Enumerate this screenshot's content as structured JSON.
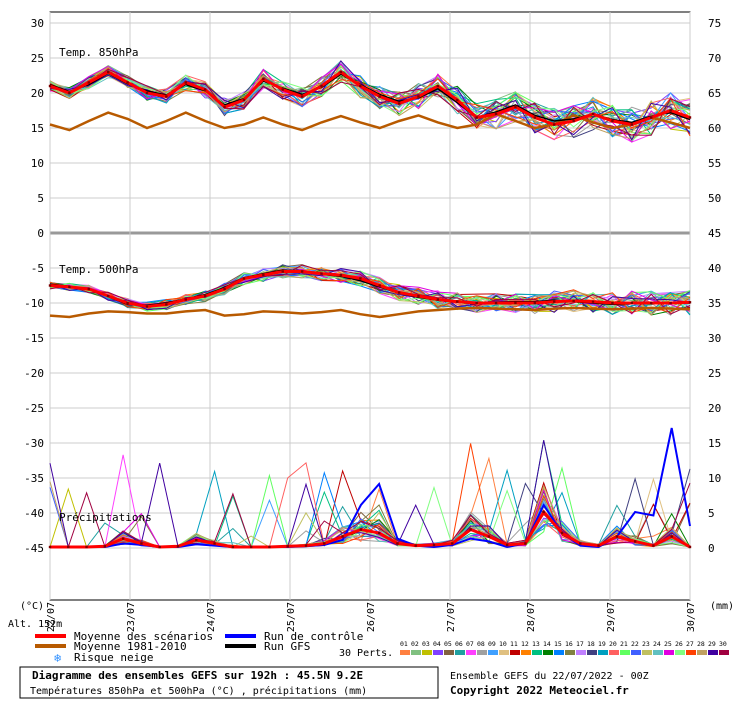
{
  "chart_data": {
    "type": "line",
    "left_axis_unit": "(°C)",
    "right_axis_unit": "(mm)",
    "altitude_label": "Alt. 152m",
    "left_ticks": [
      30,
      25,
      20,
      15,
      10,
      5,
      0,
      -5,
      -10,
      -15,
      -20,
      -25,
      -30,
      -35,
      -40,
      -45
    ],
    "right_ticks": [
      75,
      70,
      65,
      60,
      55,
      50,
      45,
      40,
      35,
      30,
      25,
      20,
      15,
      10,
      5,
      0
    ],
    "x_ticks": [
      "22/07",
      "23/07",
      "24/07",
      "25/07",
      "26/07",
      "27/07",
      "28/07",
      "29/07",
      "30/07"
    ],
    "section_labels": {
      "t850": "Temp. 850hPa",
      "t500": "Temp. 500hPa",
      "precip": "Précipitations"
    },
    "series": [
      {
        "name": "Moyenne des scénarios",
        "color": "#ff0000",
        "t850": [
          21,
          20,
          21.5,
          23,
          21.5,
          20,
          19.5,
          21.5,
          20.5,
          18,
          19,
          22,
          20.5,
          19.5,
          21,
          23,
          21,
          19.5,
          18.5,
          19.5,
          21,
          19,
          16.5,
          17,
          18,
          16.5,
          15.5,
          16,
          17,
          16,
          15.5,
          16.5,
          17.5,
          16.5
        ],
        "t500": [
          -7.5,
          -7.7,
          -8,
          -9,
          -10,
          -10.5,
          -10.2,
          -9.5,
          -9,
          -8,
          -6.5,
          -6,
          -5.5,
          -5.5,
          -5.8,
          -6,
          -6.5,
          -7.5,
          -8.5,
          -9,
          -9.5,
          -9.8,
          -10,
          -10,
          -10,
          -10,
          -9.8,
          -9.7,
          -9.8,
          -10,
          -10,
          -10,
          -10,
          -9.9
        ],
        "precip": [
          0,
          0,
          0,
          0.1,
          1.2,
          0.5,
          0,
          0.1,
          1,
          0.5,
          0,
          0,
          0,
          0.1,
          0.2,
          0.5,
          1.5,
          2.5,
          2,
          0.5,
          0.2,
          0.3,
          0.5,
          2.5,
          1.5,
          0.3,
          0.5,
          5,
          2,
          0.5,
          0.2,
          1.5,
          0.8,
          0.2,
          1.5,
          0
        ]
      },
      {
        "name": "Run de contrôle",
        "color": "#0000ff",
        "precip": [
          0,
          0,
          0,
          0,
          0.5,
          0.3,
          0,
          0,
          0.4,
          0.2,
          0,
          0,
          0,
          0,
          0.1,
          0.3,
          1,
          6,
          9,
          1.2,
          0.2,
          0,
          0.3,
          1.2,
          0.8,
          0,
          0.5,
          6,
          2,
          0.2,
          0,
          1.5,
          5,
          4.5,
          17,
          3
        ]
      },
      {
        "name": "Run GFS",
        "color": "#000000",
        "t850": [
          21.2,
          20.2,
          21.2,
          22.8,
          21.3,
          20.3,
          19.7,
          21.2,
          20.3,
          18.3,
          19.2,
          21.7,
          20.7,
          19.8,
          20.8,
          22.7,
          21.2,
          19.8,
          18.8,
          19.3,
          20.6,
          18.6,
          16.5,
          17.3,
          18.3,
          16.8,
          16,
          16.3,
          17,
          16.2,
          15.8,
          16.7,
          17.2,
          16.2
        ],
        "t500": [
          -7.3,
          -7.6,
          -8,
          -9.1,
          -10.2,
          -10.3,
          -10,
          -9.4,
          -8.8,
          -7.8,
          -6.4,
          -5.8,
          -5.3,
          -5.4,
          -5.9,
          -6.2,
          -6.8,
          -7.7,
          -8.6,
          -9.2,
          -9.6,
          -9.9,
          -10.1,
          -9.9,
          -9.8,
          -9.8,
          -9.6,
          -9.8,
          -10,
          -10.2,
          -10.1,
          -10,
          -10.1,
          -10
        ]
      },
      {
        "name": "Moyenne 1981-2010",
        "color": "#b85a00",
        "t850": [
          15.5,
          14.7,
          16,
          17.2,
          16.3,
          15,
          16,
          17.2,
          16,
          15,
          15.5,
          16.5,
          15.5,
          14.7,
          15.8,
          16.7,
          15.8,
          15,
          16,
          16.8,
          15.8,
          15,
          15.5,
          17,
          16,
          15,
          15.5,
          16.8,
          15.8,
          15,
          15.5,
          16.5,
          15.8,
          15
        ],
        "t500": [
          -11.8,
          -12,
          -11.5,
          -11.2,
          -11.3,
          -11.5,
          -11.5,
          -11.2,
          -11,
          -11.8,
          -11.6,
          -11.2,
          -11.3,
          -11.5,
          -11.3,
          -11,
          -11.6,
          -12,
          -11.6,
          -11.2,
          -11,
          -10.8,
          -10.7,
          -10.8,
          -10.9,
          -11,
          -10.8,
          -10.7,
          -10.8,
          -10.9,
          -10.8,
          -10.7,
          -10.8,
          -10.9
        ]
      }
    ]
  },
  "legend": {
    "mean": "Moyenne des scénarios",
    "control": "Run de contrôle",
    "climatology": "Moyenne 1981-2010",
    "gfs": "Run GFS",
    "snow": "Risque neige",
    "perts": "30 Perts.",
    "perts_numbers": [
      "01",
      "02",
      "03",
      "04",
      "05",
      "06",
      "07",
      "08",
      "09",
      "10",
      "11",
      "12",
      "13",
      "14",
      "15",
      "16",
      "17",
      "18",
      "19",
      "20",
      "21",
      "22",
      "23",
      "24",
      "25",
      "26",
      "27",
      "28",
      "29",
      "30"
    ],
    "perts_colors": [
      "#ff8040",
      "#80c080",
      "#c0c000",
      "#8040ff",
      "#806040",
      "#20a0a0",
      "#ff40ff",
      "#a0a0a0",
      "#40a0ff",
      "#e0c080",
      "#c00000",
      "#ff8000",
      "#00c080",
      "#008000",
      "#0080ff",
      "#808040",
      "#c080ff",
      "#404080",
      "#00a0c0",
      "#ff6060",
      "#60ff60",
      "#4060ff",
      "#c0c060",
      "#60c0c0",
      "#e000e0",
      "#80ff80",
      "#ff4000",
      "#c0a060",
      "#4000a0",
      "#a00040"
    ]
  },
  "footer": {
    "title": "Diagramme des ensembles GEFS sur 192h : 45.5N 9.2E",
    "subtitle": "Températures 850hPa et 500hPa (°C) , précipitations (mm)",
    "run_info": "Ensemble GEFS du 22/07/2022 - 00Z",
    "copyright": "Copyright 2022 Meteociel.fr"
  }
}
